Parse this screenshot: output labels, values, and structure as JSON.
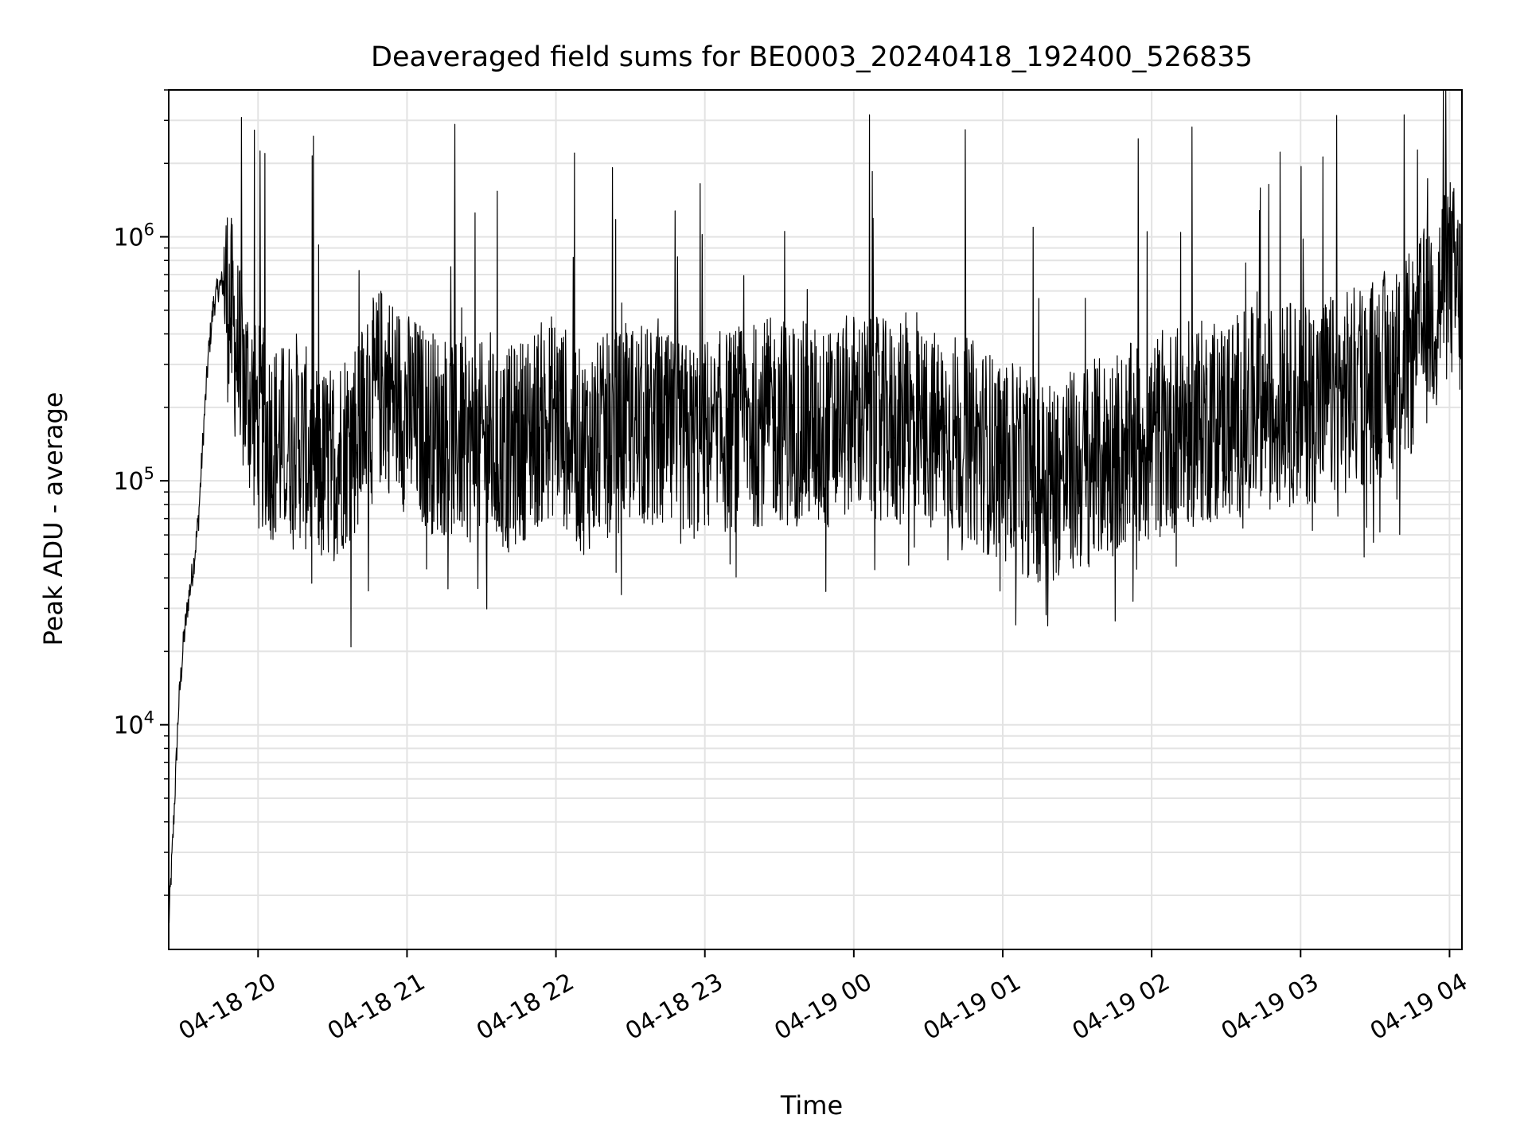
{
  "chart_data": {
    "type": "line",
    "title": "Deaveraged field sums for BE0003_20240418_192400_526835",
    "xlabel": "Time",
    "ylabel": "Peak ADU - average",
    "yscale": "log",
    "ylim": [
      1200,
      4000000
    ],
    "xlim": [
      "2024-04-18 19:24",
      "2024-04-19 04:05"
    ],
    "grid": true,
    "line_color": "#000000",
    "x_ticks": [
      {
        "t": "2024-04-18 20:00",
        "label": "04-18 20"
      },
      {
        "t": "2024-04-18 21:00",
        "label": "04-18 21"
      },
      {
        "t": "2024-04-18 22:00",
        "label": "04-18 22"
      },
      {
        "t": "2024-04-18 23:00",
        "label": "04-18 23"
      },
      {
        "t": "2024-04-19 00:00",
        "label": "04-19 00"
      },
      {
        "t": "2024-04-19 01:00",
        "label": "04-19 01"
      },
      {
        "t": "2024-04-19 02:00",
        "label": "04-19 02"
      },
      {
        "t": "2024-04-19 03:00",
        "label": "04-19 03"
      },
      {
        "t": "2024-04-19 04:00",
        "label": "04-19 04"
      }
    ],
    "y_ticks": [
      {
        "value": 10000,
        "base": "10",
        "exp": "4"
      },
      {
        "value": 100000,
        "base": "10",
        "exp": "5"
      },
      {
        "value": 1000000,
        "base": "10",
        "exp": "6"
      }
    ],
    "series": [
      {
        "x": [
          "2024-04-18 19:24",
          "2024-04-18 19:26",
          "2024-04-18 19:28",
          "2024-04-18 19:30",
          "2024-04-18 19:32",
          "2024-04-18 19:34",
          "2024-04-18 19:36",
          "2024-04-18 19:38",
          "2024-04-18 19:40",
          "2024-04-18 19:42",
          "2024-04-18 19:44",
          "2024-04-18 19:46",
          "2024-04-18 19:48",
          "2024-04-18 19:50",
          "2024-04-18 19:52",
          "2024-04-18 19:54",
          "2024-04-18 19:56",
          "2024-04-18 19:58",
          "2024-04-18 20:00",
          "2024-04-18 20:05",
          "2024-04-18 20:10",
          "2024-04-18 20:15",
          "2024-04-18 20:20",
          "2024-04-18 20:25",
          "2024-04-18 20:30",
          "2024-04-18 20:35",
          "2024-04-18 20:40",
          "2024-04-18 20:45",
          "2024-04-18 20:50",
          "2024-04-18 20:55",
          "2024-04-18 21:00",
          "2024-04-18 21:10",
          "2024-04-18 21:20",
          "2024-04-18 21:30",
          "2024-04-18 21:40",
          "2024-04-18 21:50",
          "2024-04-18 22:00",
          "2024-04-18 22:10",
          "2024-04-18 22:20",
          "2024-04-18 22:30",
          "2024-04-18 22:40",
          "2024-04-18 22:50",
          "2024-04-18 23:00",
          "2024-04-18 23:10",
          "2024-04-18 23:20",
          "2024-04-18 23:30",
          "2024-04-18 23:40",
          "2024-04-18 23:50",
          "2024-04-19 00:00",
          "2024-04-19 00:15",
          "2024-04-19 00:30",
          "2024-04-19 00:45",
          "2024-04-19 01:00",
          "2024-04-19 01:15",
          "2024-04-19 01:30",
          "2024-04-19 01:45",
          "2024-04-19 02:00",
          "2024-04-19 02:15",
          "2024-04-19 02:30",
          "2024-04-19 02:45",
          "2024-04-19 03:00",
          "2024-04-19 03:15",
          "2024-04-19 03:30",
          "2024-04-19 03:45",
          "2024-04-19 04:00",
          "2024-04-19 04:05"
        ],
        "values": [
          1500,
          4000,
          12000,
          22000,
          33000,
          45000,
          70000,
          160000,
          330000,
          520000,
          620000,
          650000,
          540000,
          420000,
          320000,
          260000,
          230000,
          200000,
          170000,
          150000,
          140000,
          160000,
          130000,
          110000,
          120000,
          140000,
          160000,
          200000,
          250000,
          220000,
          190000,
          160000,
          150000,
          140000,
          130000,
          160000,
          190000,
          130000,
          150000,
          170000,
          160000,
          140000,
          150000,
          160000,
          170000,
          180000,
          170000,
          160000,
          190000,
          170000,
          160000,
          150000,
          120000,
          100000,
          110000,
          130000,
          150000,
          170000,
          180000,
          200000,
          210000,
          220000,
          260000,
          330000,
          700000,
          520000
        ]
      }
    ]
  }
}
